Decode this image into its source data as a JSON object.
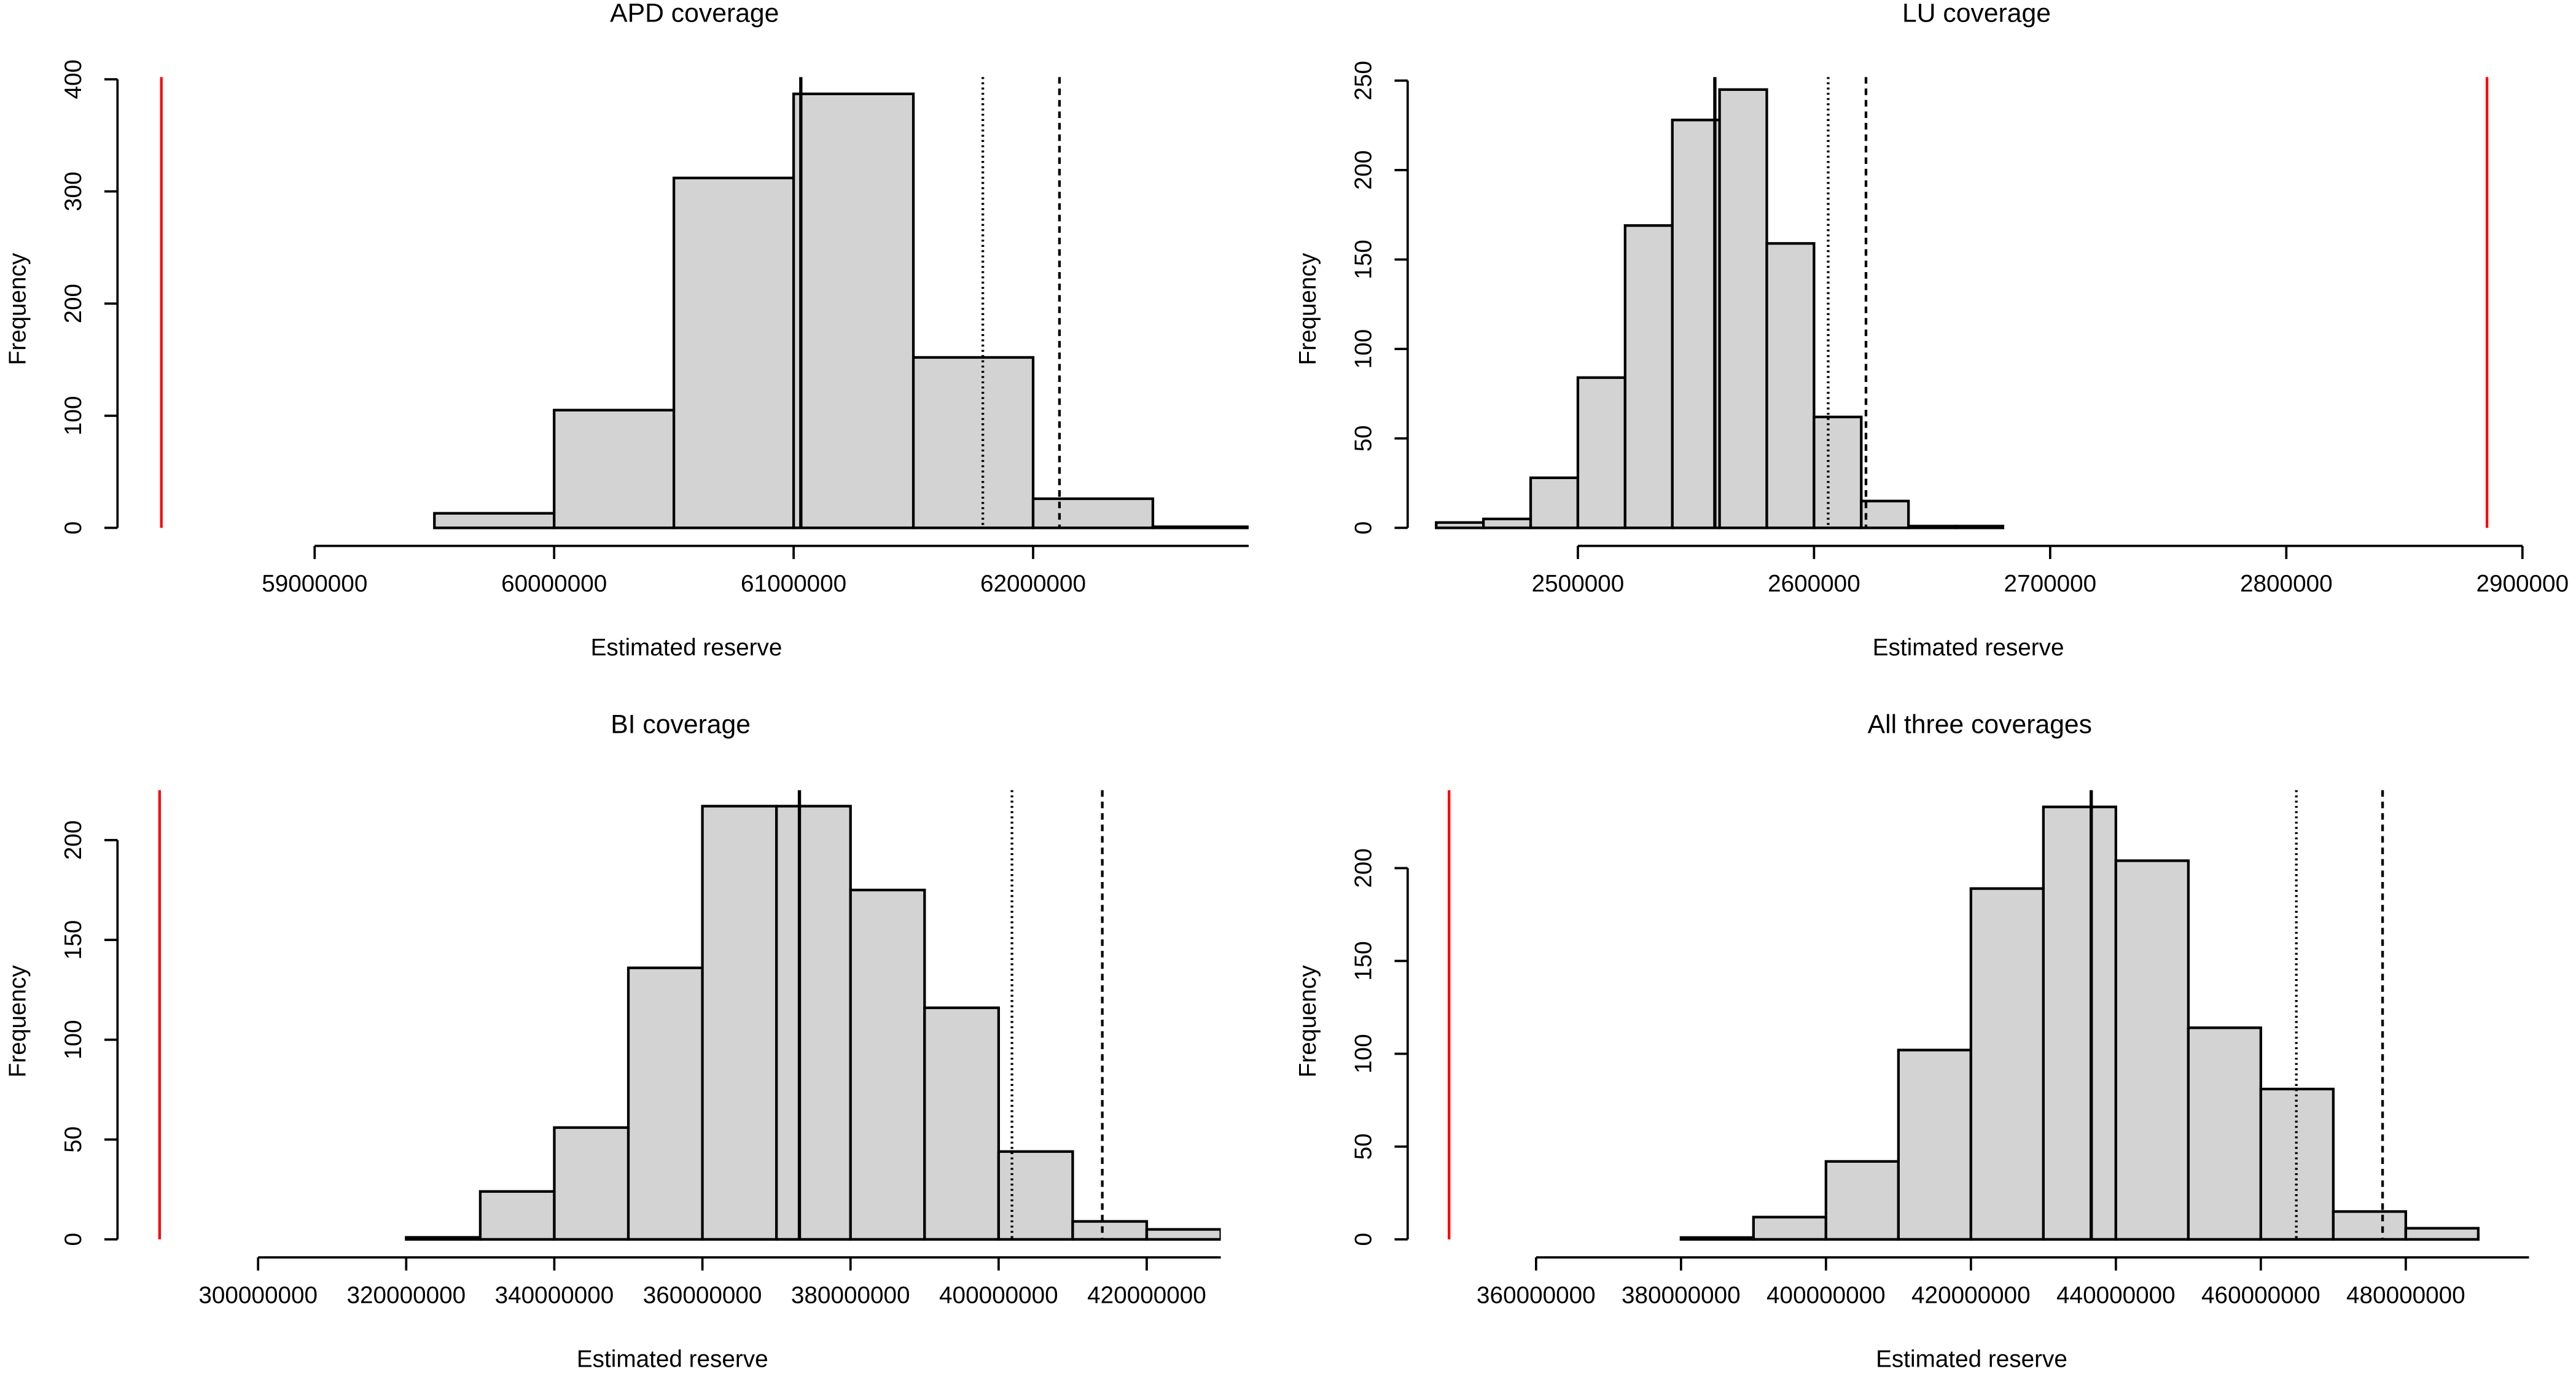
{
  "chart_data": [
    {
      "type": "histogram",
      "title": "APD coverage",
      "xlabel": "Estimated reserve",
      "ylabel": "Frequency",
      "color": "#d3d3d3",
      "bins": [
        59500000,
        60000000,
        60500000,
        61000000,
        61500000,
        62000000,
        62500000,
        63000000
      ],
      "values": [
        13,
        105,
        312,
        387,
        152,
        26,
        1
      ],
      "xlim": [
        58300000,
        62900000
      ],
      "xticks": [
        59000000,
        60000000,
        61000000,
        62000000
      ],
      "ylim": [
        0,
        402
      ],
      "yticks": [
        0,
        100,
        200,
        300,
        400
      ],
      "vlines": [
        {
          "value": 61030000,
          "color": "#000000",
          "style": "solid"
        },
        {
          "value": 61790000,
          "color": "#000000",
          "style": "dotted"
        },
        {
          "value": 62110000,
          "color": "#000000",
          "style": "dashed"
        },
        {
          "value": 58360000,
          "color": "#ff0000",
          "style": "solid"
        }
      ]
    },
    {
      "type": "histogram",
      "title": "LU coverage",
      "xlabel": "Estimated reserve",
      "ylabel": "Frequency",
      "color": "#d3d3d3",
      "bins": [
        2440000,
        2460000,
        2480000,
        2500000,
        2520000,
        2540000,
        2560000,
        2580000,
        2600000,
        2620000,
        2640000,
        2660000,
        2680000
      ],
      "values": [
        3,
        5,
        28,
        84,
        169,
        228,
        245,
        159,
        62,
        15,
        1,
        1
      ],
      "xlim": [
        2430000,
        2900000
      ],
      "xticks": [
        2500000,
        2600000,
        2700000,
        2800000,
        2900000
      ],
      "ylim": [
        0,
        252
      ],
      "yticks": [
        0,
        50,
        100,
        150,
        200,
        250
      ],
      "vlines": [
        {
          "value": 2558000,
          "color": "#000000",
          "style": "solid"
        },
        {
          "value": 2606000,
          "color": "#000000",
          "style": "dotted"
        },
        {
          "value": 2622000,
          "color": "#000000",
          "style": "dashed"
        },
        {
          "value": 2885000,
          "color": "#ff0000",
          "style": "solid"
        }
      ]
    },
    {
      "type": "histogram",
      "title": "BI coverage",
      "xlabel": "Estimated reserve",
      "ylabel": "Frequency",
      "color": "#d3d3d3",
      "bins": [
        320000000,
        330000000,
        340000000,
        350000000,
        360000000,
        370000000,
        380000000,
        390000000,
        400000000,
        410000000,
        420000000,
        430000000
      ],
      "values": [
        1,
        24,
        56,
        136,
        217,
        217,
        175,
        116,
        44,
        9,
        5
      ],
      "xlim": [
        285000000,
        430000000
      ],
      "xticks": [
        300000000,
        320000000,
        340000000,
        360000000,
        380000000,
        400000000,
        420000000
      ],
      "ylim": [
        0,
        225
      ],
      "yticks": [
        0,
        50,
        100,
        150,
        200
      ],
      "vlines": [
        {
          "value": 373100000,
          "color": "#000000",
          "style": "solid"
        },
        {
          "value": 401800000,
          "color": "#000000",
          "style": "dotted"
        },
        {
          "value": 414000000,
          "color": "#000000",
          "style": "dashed"
        },
        {
          "value": 286700000,
          "color": "#ff0000",
          "style": "solid"
        }
      ]
    },
    {
      "type": "histogram",
      "title": "All three coverages",
      "xlabel": "Estimated reserve",
      "ylabel": "Frequency",
      "color": "#d3d3d3",
      "bins": [
        380000000,
        390000000,
        400000000,
        410000000,
        420000000,
        430000000,
        440000000,
        450000000,
        460000000,
        470000000,
        480000000,
        490000000
      ],
      "values": [
        1,
        12,
        42,
        102,
        189,
        233,
        204,
        114,
        81,
        15,
        6
      ],
      "xlim": [
        345000000,
        497000000
      ],
      "xticks": [
        360000000,
        380000000,
        400000000,
        420000000,
        440000000,
        460000000,
        480000000
      ],
      "ylim": [
        0,
        242
      ],
      "yticks": [
        0,
        50,
        100,
        150,
        200
      ],
      "vlines": [
        {
          "value": 436600000,
          "color": "#000000",
          "style": "solid"
        },
        {
          "value": 464900000,
          "color": "#000000",
          "style": "dotted"
        },
        {
          "value": 476800000,
          "color": "#000000",
          "style": "dashed"
        },
        {
          "value": 348000000,
          "color": "#ff0000",
          "style": "solid"
        }
      ]
    }
  ]
}
